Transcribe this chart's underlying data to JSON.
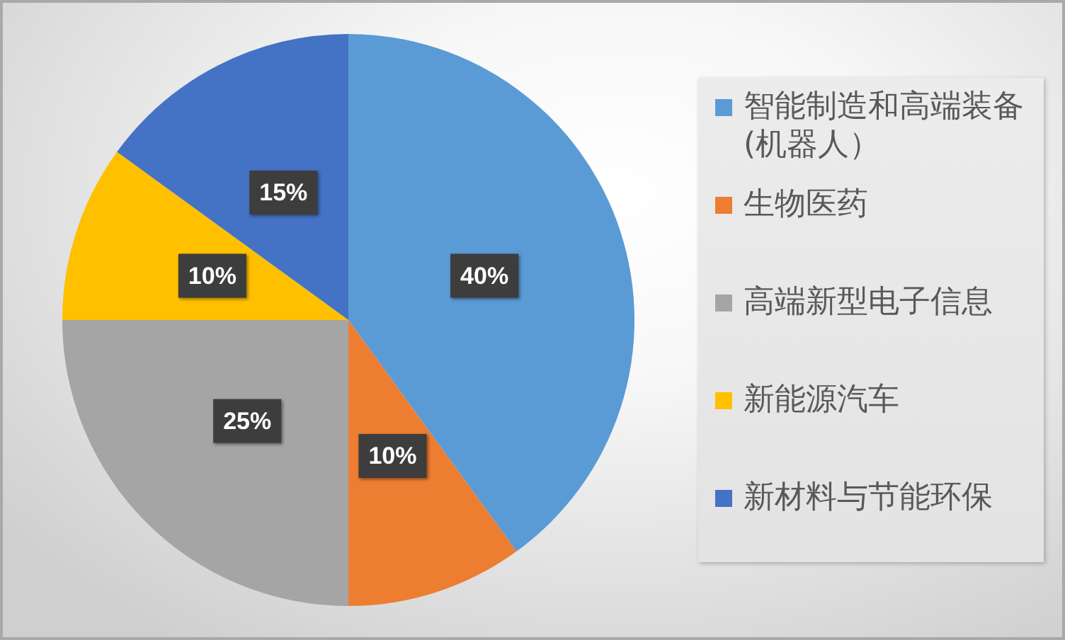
{
  "chart_data": {
    "type": "pie",
    "categories": [
      "智能制造和高端装备(机器人）",
      "生物医药",
      "高端新型电子信息",
      "新能源汽车",
      "新材料与节能环保"
    ],
    "values": [
      40,
      10,
      25,
      10,
      15
    ],
    "value_labels": [
      "40%",
      "10%",
      "25%",
      "10%",
      "15%"
    ],
    "colors": [
      "#5b9bd5",
      "#ed7d31",
      "#a5a5a5",
      "#ffc000",
      "#4472c4"
    ],
    "legend": "right"
  }
}
